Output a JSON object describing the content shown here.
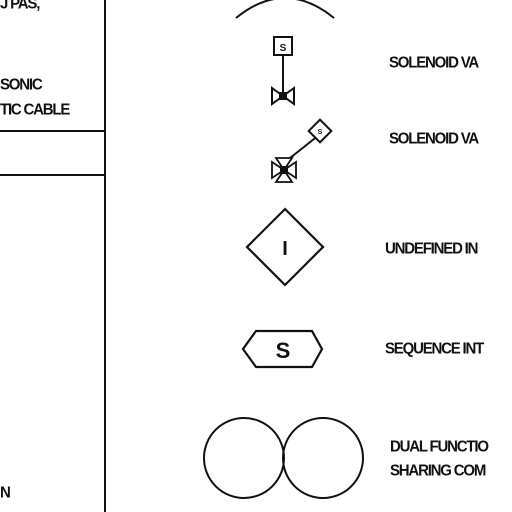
{
  "left_panel": {
    "line1": "J PAS,",
    "line2": "SONIC",
    "line3": "TIC CABLE",
    "line4": "N"
  },
  "symbols": {
    "solenoid_1": {
      "glyph": "S",
      "label": "SOLENOID VA"
    },
    "solenoid_2": {
      "glyph": "S",
      "label": "SOLENOID VA"
    },
    "undefined": {
      "glyph": "I",
      "label": "UNDEFINED IN"
    },
    "sequence": {
      "glyph": "S",
      "label": "SEQUENCE INT"
    },
    "dual": {
      "label_line1": "DUAL FUNCTIO",
      "label_line2": "SHARING COM"
    }
  }
}
